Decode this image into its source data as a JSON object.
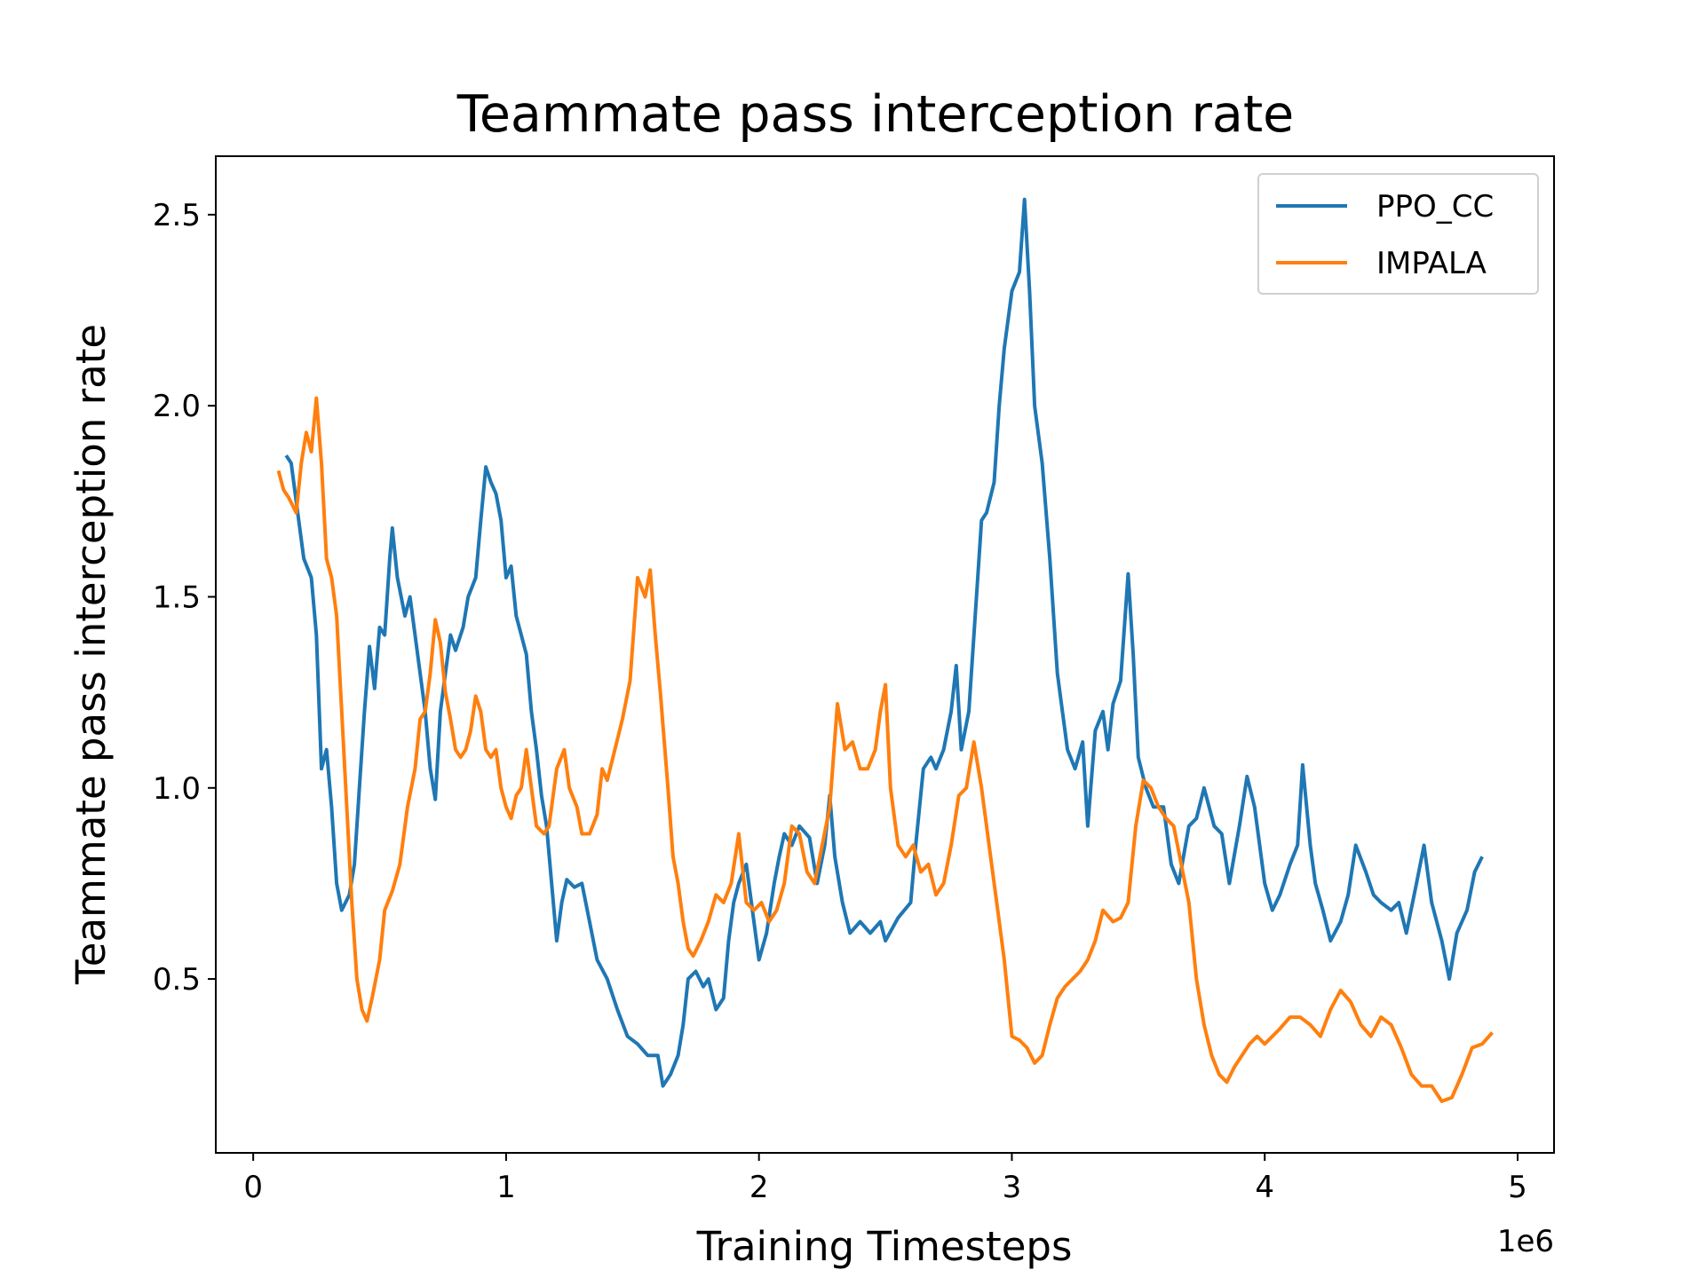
{
  "chart_data": {
    "type": "line",
    "title": "Teammate pass interception rate",
    "xlabel": "Training Timesteps",
    "ylabel": "Teammate pass interception rate",
    "x_offset_label": "1e6",
    "xlim": [
      -0.148,
      5.144
    ],
    "ylim": [
      0.045,
      2.653
    ],
    "xticks": [
      0,
      1,
      2,
      3,
      4,
      5
    ],
    "yticks": [
      0.5,
      {
        "value": 1.0,
        "label": "1.0"
      },
      1.5,
      {
        "value": 2.0,
        "label": "2.0"
      },
      2.5
    ],
    "legend": "upper right",
    "series": [
      {
        "name": "PPO_CC",
        "color": "#1f77b4",
        "x": [
          0.13,
          0.15,
          0.18,
          0.2,
          0.23,
          0.25,
          0.27,
          0.29,
          0.31,
          0.33,
          0.35,
          0.38,
          0.4,
          0.42,
          0.44,
          0.46,
          0.48,
          0.5,
          0.52,
          0.54,
          0.55,
          0.57,
          0.6,
          0.62,
          0.64,
          0.66,
          0.68,
          0.7,
          0.72,
          0.74,
          0.76,
          0.78,
          0.8,
          0.83,
          0.85,
          0.88,
          0.9,
          0.92,
          0.94,
          0.96,
          0.98,
          1.0,
          1.02,
          1.04,
          1.06,
          1.08,
          1.1,
          1.12,
          1.14,
          1.16,
          1.18,
          1.2,
          1.22,
          1.24,
          1.27,
          1.3,
          1.33,
          1.36,
          1.4,
          1.44,
          1.48,
          1.52,
          1.56,
          1.6,
          1.62,
          1.65,
          1.68,
          1.7,
          1.72,
          1.75,
          1.78,
          1.8,
          1.83,
          1.86,
          1.88,
          1.9,
          1.92,
          1.95,
          1.98,
          2.0,
          2.03,
          2.06,
          2.08,
          2.1,
          2.13,
          2.16,
          2.2,
          2.23,
          2.26,
          2.28,
          2.3,
          2.33,
          2.36,
          2.4,
          2.44,
          2.48,
          2.5,
          2.55,
          2.6,
          2.62,
          2.65,
          2.68,
          2.7,
          2.73,
          2.76,
          2.78,
          2.8,
          2.83,
          2.86,
          2.88,
          2.9,
          2.93,
          2.95,
          2.97,
          3.0,
          3.03,
          3.05,
          3.07,
          3.09,
          3.12,
          3.15,
          3.18,
          3.2,
          3.22,
          3.25,
          3.28,
          3.3,
          3.33,
          3.36,
          3.38,
          3.4,
          3.43,
          3.46,
          3.48,
          3.5,
          3.53,
          3.56,
          3.6,
          3.63,
          3.66,
          3.7,
          3.73,
          3.76,
          3.8,
          3.83,
          3.86,
          3.9,
          3.93,
          3.96,
          4.0,
          4.03,
          4.06,
          4.1,
          4.13,
          4.15,
          4.18,
          4.2,
          4.23,
          4.26,
          4.3,
          4.33,
          4.36,
          4.4,
          4.43,
          4.46,
          4.5,
          4.53,
          4.56,
          4.6,
          4.63,
          4.66,
          4.7,
          4.73,
          4.76,
          4.8,
          4.83,
          4.86
        ],
        "values": [
          1.87,
          1.85,
          1.7,
          1.6,
          1.55,
          1.4,
          1.05,
          1.1,
          0.95,
          0.75,
          0.68,
          0.72,
          0.8,
          1.0,
          1.2,
          1.37,
          1.26,
          1.42,
          1.4,
          1.6,
          1.68,
          1.55,
          1.45,
          1.5,
          1.4,
          1.3,
          1.2,
          1.05,
          0.97,
          1.2,
          1.3,
          1.4,
          1.36,
          1.42,
          1.5,
          1.55,
          1.7,
          1.84,
          1.8,
          1.77,
          1.7,
          1.55,
          1.58,
          1.45,
          1.4,
          1.35,
          1.2,
          1.1,
          0.98,
          0.9,
          0.75,
          0.6,
          0.7,
          0.76,
          0.74,
          0.75,
          0.65,
          0.55,
          0.5,
          0.42,
          0.35,
          0.33,
          0.3,
          0.3,
          0.22,
          0.25,
          0.3,
          0.38,
          0.5,
          0.52,
          0.48,
          0.5,
          0.42,
          0.45,
          0.6,
          0.7,
          0.75,
          0.8,
          0.65,
          0.55,
          0.62,
          0.75,
          0.82,
          0.88,
          0.85,
          0.9,
          0.87,
          0.75,
          0.85,
          0.98,
          0.82,
          0.7,
          0.62,
          0.65,
          0.62,
          0.65,
          0.6,
          0.66,
          0.7,
          0.85,
          1.05,
          1.08,
          1.05,
          1.1,
          1.2,
          1.32,
          1.1,
          1.2,
          1.5,
          1.7,
          1.72,
          1.8,
          2.0,
          2.15,
          2.3,
          2.35,
          2.54,
          2.3,
          2.0,
          1.85,
          1.6,
          1.3,
          1.2,
          1.1,
          1.05,
          1.12,
          0.9,
          1.15,
          1.2,
          1.1,
          1.22,
          1.28,
          1.56,
          1.35,
          1.08,
          1.0,
          0.95,
          0.95,
          0.8,
          0.75,
          0.9,
          0.92,
          1.0,
          0.9,
          0.88,
          0.75,
          0.9,
          1.03,
          0.95,
          0.75,
          0.68,
          0.72,
          0.8,
          0.85,
          1.06,
          0.85,
          0.75,
          0.68,
          0.6,
          0.65,
          0.72,
          0.85,
          0.78,
          0.72,
          0.7,
          0.68,
          0.7,
          0.62,
          0.75,
          0.85,
          0.7,
          0.6,
          0.5,
          0.62,
          0.68,
          0.78,
          0.82
        ]
      },
      {
        "name": "IMPALA",
        "color": "#ff7f0e",
        "x": [
          0.1,
          0.12,
          0.14,
          0.17,
          0.19,
          0.21,
          0.23,
          0.25,
          0.27,
          0.29,
          0.31,
          0.33,
          0.35,
          0.37,
          0.39,
          0.41,
          0.43,
          0.45,
          0.47,
          0.5,
          0.52,
          0.55,
          0.58,
          0.61,
          0.64,
          0.66,
          0.68,
          0.7,
          0.72,
          0.74,
          0.76,
          0.78,
          0.8,
          0.82,
          0.84,
          0.86,
          0.88,
          0.9,
          0.92,
          0.94,
          0.96,
          0.98,
          1.0,
          1.02,
          1.04,
          1.06,
          1.08,
          1.1,
          1.12,
          1.15,
          1.17,
          1.2,
          1.23,
          1.25,
          1.28,
          1.3,
          1.33,
          1.36,
          1.38,
          1.4,
          1.43,
          1.46,
          1.49,
          1.52,
          1.55,
          1.57,
          1.59,
          1.61,
          1.64,
          1.66,
          1.68,
          1.7,
          1.72,
          1.74,
          1.77,
          1.8,
          1.83,
          1.86,
          1.89,
          1.92,
          1.95,
          1.98,
          2.01,
          2.04,
          2.07,
          2.1,
          2.13,
          2.16,
          2.19,
          2.22,
          2.25,
          2.28,
          2.31,
          2.34,
          2.37,
          2.4,
          2.43,
          2.46,
          2.48,
          2.5,
          2.52,
          2.55,
          2.58,
          2.61,
          2.64,
          2.67,
          2.7,
          2.73,
          2.76,
          2.79,
          2.82,
          2.85,
          2.88,
          2.91,
          2.94,
          2.97,
          3.0,
          3.03,
          3.06,
          3.09,
          3.12,
          3.15,
          3.18,
          3.21,
          3.24,
          3.27,
          3.3,
          3.33,
          3.36,
          3.4,
          3.43,
          3.46,
          3.49,
          3.52,
          3.55,
          3.58,
          3.61,
          3.64,
          3.67,
          3.7,
          3.73,
          3.76,
          3.79,
          3.82,
          3.85,
          3.88,
          3.91,
          3.94,
          3.97,
          4.0,
          4.03,
          4.06,
          4.1,
          4.14,
          4.18,
          4.22,
          4.26,
          4.3,
          4.34,
          4.38,
          4.42,
          4.46,
          4.5,
          4.54,
          4.58,
          4.62,
          4.66,
          4.7,
          4.74,
          4.78,
          4.82,
          4.86,
          4.9
        ],
        "values": [
          1.83,
          1.78,
          1.76,
          1.72,
          1.85,
          1.93,
          1.88,
          2.02,
          1.85,
          1.6,
          1.55,
          1.45,
          1.2,
          0.95,
          0.7,
          0.5,
          0.42,
          0.39,
          0.45,
          0.55,
          0.68,
          0.73,
          0.8,
          0.95,
          1.05,
          1.18,
          1.2,
          1.3,
          1.44,
          1.38,
          1.25,
          1.18,
          1.1,
          1.08,
          1.1,
          1.15,
          1.24,
          1.2,
          1.1,
          1.08,
          1.1,
          1.0,
          0.95,
          0.92,
          0.98,
          1.0,
          1.1,
          1.0,
          0.9,
          0.88,
          0.9,
          1.05,
          1.1,
          1.0,
          0.95,
          0.88,
          0.88,
          0.93,
          1.05,
          1.02,
          1.1,
          1.18,
          1.28,
          1.55,
          1.5,
          1.57,
          1.4,
          1.25,
          1.0,
          0.82,
          0.75,
          0.65,
          0.58,
          0.56,
          0.6,
          0.65,
          0.72,
          0.7,
          0.75,
          0.88,
          0.7,
          0.68,
          0.7,
          0.65,
          0.68,
          0.75,
          0.9,
          0.88,
          0.78,
          0.75,
          0.85,
          0.95,
          1.22,
          1.1,
          1.12,
          1.05,
          1.05,
          1.1,
          1.2,
          1.27,
          1.0,
          0.85,
          0.82,
          0.85,
          0.78,
          0.8,
          0.72,
          0.75,
          0.85,
          0.98,
          1.0,
          1.12,
          1.0,
          0.85,
          0.7,
          0.55,
          0.35,
          0.34,
          0.32,
          0.28,
          0.3,
          0.38,
          0.45,
          0.48,
          0.5,
          0.52,
          0.55,
          0.6,
          0.68,
          0.65,
          0.66,
          0.7,
          0.9,
          1.02,
          1.0,
          0.95,
          0.92,
          0.9,
          0.8,
          0.7,
          0.5,
          0.38,
          0.3,
          0.25,
          0.23,
          0.27,
          0.3,
          0.33,
          0.35,
          0.33,
          0.35,
          0.37,
          0.4,
          0.4,
          0.38,
          0.35,
          0.42,
          0.47,
          0.44,
          0.38,
          0.35,
          0.4,
          0.38,
          0.32,
          0.25,
          0.22,
          0.22,
          0.18,
          0.19,
          0.25,
          0.32,
          0.33,
          0.36
        ]
      }
    ]
  }
}
